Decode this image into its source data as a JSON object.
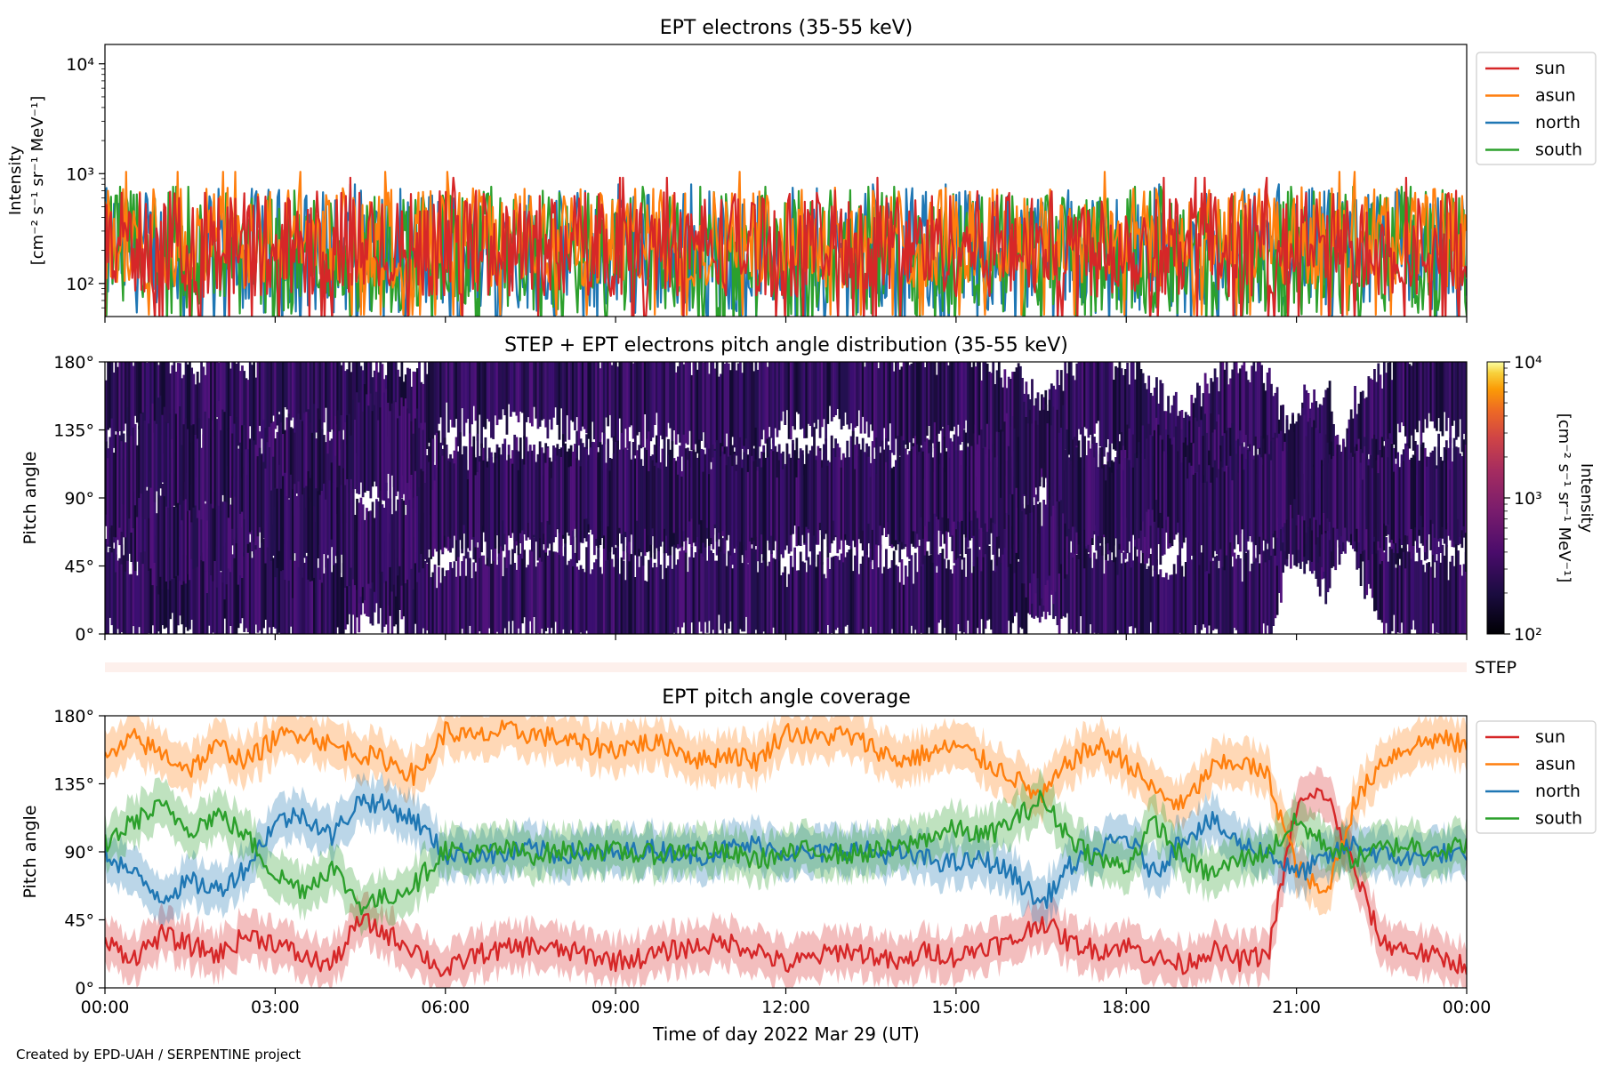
{
  "figure": {
    "credit": "Created by EPD-UAH / SERPENTINE project",
    "xlabel": "Time of day 2022 Mar 29 (UT)"
  },
  "chart_data": [
    {
      "type": "line",
      "title": "EPT electrons (35-55 keV)",
      "ylabel_lines": [
        "Intensity",
        "[cm⁻² s⁻¹ sr⁻¹ MeV⁻¹]"
      ],
      "yscale": "log",
      "ylim": [
        50,
        15000
      ],
      "ytick_labels": [
        "10²",
        "10³",
        "10⁴"
      ],
      "ytick_values": [
        100,
        1000,
        10000
      ],
      "legend_position": "outside-right",
      "series": [
        {
          "name": "sun",
          "color": "#d62728",
          "base": 230,
          "spread": 0.22
        },
        {
          "name": "asun",
          "color": "#ff7f0e",
          "base": 260,
          "spread": 0.21
        },
        {
          "name": "north",
          "color": "#1f77b4",
          "base": 200,
          "spread": 0.26
        },
        {
          "name": "south",
          "color": "#2ca02c",
          "base": 190,
          "spread": 0.26
        }
      ],
      "note_values": "noisy intensities fluctuating roughly between 50 and 1000 with no event"
    },
    {
      "type": "heatmap",
      "title": "STEP + EPT electrons pitch angle distribution (35-55 keV)",
      "ylabel": "Pitch angle",
      "ylim": [
        0,
        180
      ],
      "ytick_labels": [
        "0°",
        "45°",
        "90°",
        "135°",
        "180°"
      ],
      "ytick_values": [
        0,
        45,
        90,
        135,
        180
      ],
      "colorbar": {
        "label_lines": [
          "Intensity",
          "[cm⁻² s⁻¹ sr⁻¹ MeV⁻¹]"
        ],
        "scale": "log",
        "range": [
          100,
          10000
        ],
        "tick_labels": [
          "10²",
          "10³",
          "10⁴"
        ],
        "colormap": "inferno"
      },
      "band_centers_description": "coverage bands around each telescope pitch angle: sun ~25°, asun ~155°, north/south ~90°"
    },
    {
      "type": "strip",
      "label": "STEP",
      "color": "#fdf0ec"
    },
    {
      "type": "line",
      "title": "EPT pitch angle coverage",
      "ylabel": "Pitch angle",
      "ylim": [
        0,
        180
      ],
      "ytick_labels": [
        "0°",
        "45°",
        "90°",
        "135°",
        "180°"
      ],
      "ytick_values": [
        0,
        45,
        90,
        135,
        180
      ],
      "legend_position": "outside-right",
      "x_range_hours": [
        0,
        24
      ],
      "xtick_labels": [
        "00:00",
        "03:00",
        "06:00",
        "09:00",
        "12:00",
        "15:00",
        "18:00",
        "21:00",
        "00:00"
      ],
      "xtick_hours": [
        0,
        3,
        6,
        9,
        12,
        15,
        18,
        21,
        24
      ],
      "series": [
        {
          "name": "sun",
          "color": "#d62728",
          "hours": [
            0,
            0.5,
            1,
            1.5,
            2,
            2.5,
            3,
            3.5,
            4,
            4.5,
            5,
            5.5,
            6,
            6.5,
            7,
            7.5,
            8,
            8.5,
            9,
            9.5,
            10,
            10.5,
            11,
            11.5,
            12,
            12.5,
            13,
            13.5,
            14,
            14.5,
            15,
            15.5,
            16,
            16.5,
            17,
            17.5,
            18,
            18.5,
            19,
            19.5,
            20,
            20.5,
            21,
            21.5,
            22,
            22.5,
            23,
            23.5,
            24
          ],
          "values": [
            30,
            20,
            35,
            28,
            22,
            35,
            30,
            20,
            15,
            45,
            35,
            25,
            10,
            22,
            25,
            28,
            25,
            22,
            18,
            20,
            25,
            28,
            30,
            25,
            15,
            20,
            25,
            22,
            15,
            25,
            20,
            28,
            30,
            45,
            30,
            25,
            28,
            20,
            15,
            25,
            18,
            22,
            120,
            130,
            80,
            30,
            25,
            20,
            15
          ]
        },
        {
          "name": "asun",
          "color": "#ff7f0e",
          "hours": [
            0,
            0.5,
            1,
            1.5,
            2,
            2.5,
            3,
            3.5,
            4,
            4.5,
            5,
            5.5,
            6,
            6.5,
            7,
            7.5,
            8,
            8.5,
            9,
            9.5,
            10,
            10.5,
            11,
            11.5,
            12,
            12.5,
            13,
            13.5,
            14,
            14.5,
            15,
            15.5,
            16,
            16.5,
            17,
            17.5,
            18,
            18.5,
            19,
            19.5,
            20,
            20.5,
            21,
            21.5,
            22,
            22.5,
            23,
            23.5,
            24
          ],
          "values": [
            150,
            165,
            155,
            145,
            160,
            150,
            165,
            170,
            160,
            155,
            150,
            140,
            170,
            165,
            170,
            168,
            165,
            160,
            158,
            162,
            160,
            150,
            155,
            150,
            170,
            165,
            168,
            160,
            150,
            155,
            160,
            150,
            140,
            125,
            150,
            160,
            150,
            130,
            120,
            145,
            150,
            140,
            80,
            60,
            120,
            150,
            160,
            165,
            160
          ]
        },
        {
          "name": "north",
          "color": "#1f77b4",
          "hours": [
            0,
            0.5,
            1,
            1.5,
            2,
            2.5,
            3,
            3.5,
            4,
            4.5,
            5,
            5.5,
            6,
            6.5,
            7,
            7.5,
            8,
            8.5,
            9,
            9.5,
            10,
            10.5,
            11,
            11.5,
            12,
            12.5,
            13,
            13.5,
            14,
            14.5,
            15,
            15.5,
            16,
            16.5,
            17,
            17.5,
            18,
            18.5,
            19,
            19.5,
            20,
            20.5,
            21,
            21.5,
            22,
            22.5,
            23,
            23.5,
            24
          ],
          "values": [
            90,
            75,
            60,
            70,
            65,
            80,
            110,
            115,
            100,
            125,
            120,
            110,
            88,
            90,
            87,
            92,
            88,
            90,
            88,
            92,
            90,
            88,
            92,
            95,
            90,
            88,
            92,
            90,
            88,
            85,
            82,
            85,
            75,
            55,
            80,
            90,
            100,
            75,
            100,
            110,
            95,
            90,
            75,
            85,
            95,
            88,
            85,
            90,
            85
          ]
        },
        {
          "name": "south",
          "color": "#2ca02c",
          "hours": [
            0,
            0.5,
            1,
            1.5,
            2,
            2.5,
            3,
            3.5,
            4,
            4.5,
            5,
            5.5,
            6,
            6.5,
            7,
            7.5,
            8,
            8.5,
            9,
            9.5,
            10,
            10.5,
            11,
            11.5,
            12,
            12.5,
            13,
            13.5,
            14,
            14.5,
            15,
            15.5,
            16,
            16.5,
            17,
            17.5,
            18,
            18.5,
            19,
            19.5,
            20,
            20.5,
            21,
            21.5,
            22,
            22.5,
            23,
            23.5,
            24
          ],
          "values": [
            95,
            110,
            120,
            105,
            115,
            100,
            75,
            65,
            80,
            55,
            60,
            70,
            92,
            88,
            92,
            88,
            90,
            92,
            90,
            88,
            90,
            92,
            88,
            85,
            88,
            92,
            88,
            90,
            92,
            100,
            105,
            100,
            110,
            125,
            100,
            85,
            80,
            110,
            85,
            75,
            85,
            90,
            110,
            95,
            85,
            92,
            95,
            90,
            95
          ]
        }
      ],
      "note_values": "approximate pitch angles (degrees) read at 30-minute resolution; each line has a shaded ±15° coverage band"
    }
  ]
}
